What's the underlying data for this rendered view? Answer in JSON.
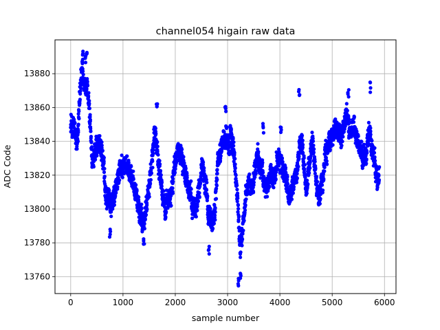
{
  "chart_data": {
    "type": "scatter",
    "title": "channel054 higain raw data",
    "xlabel": "sample number",
    "ylabel": "ADC Code",
    "xlim": [
      -300,
      6220
    ],
    "ylim": [
      13750,
      13900
    ],
    "xticks": [
      0,
      1000,
      2000,
      3000,
      4000,
      5000,
      6000
    ],
    "yticks": [
      13760,
      13780,
      13800,
      13820,
      13840,
      13860,
      13880
    ],
    "grid": true,
    "marker_color": "#0000ff",
    "trend": [
      [
        0,
        13850
      ],
      [
        60,
        13848
      ],
      [
        120,
        13842
      ],
      [
        180,
        13868
      ],
      [
        220,
        13880
      ],
      [
        260,
        13876
      ],
      [
        320,
        13874
      ],
      [
        360,
        13858
      ],
      [
        420,
        13830
      ],
      [
        480,
        13840
      ],
      [
        540,
        13838
      ],
      [
        600,
        13832
      ],
      [
        660,
        13815
      ],
      [
        720,
        13808
      ],
      [
        780,
        13800
      ],
      [
        840,
        13810
      ],
      [
        900,
        13820
      ],
      [
        960,
        13824
      ],
      [
        1020,
        13828
      ],
      [
        1080,
        13826
      ],
      [
        1140,
        13820
      ],
      [
        1200,
        13816
      ],
      [
        1260,
        13810
      ],
      [
        1320,
        13798
      ],
      [
        1380,
        13792
      ],
      [
        1440,
        13800
      ],
      [
        1500,
        13812
      ],
      [
        1560,
        13830
      ],
      [
        1620,
        13848
      ],
      [
        1680,
        13830
      ],
      [
        1740,
        13812
      ],
      [
        1800,
        13800
      ],
      [
        1860,
        13802
      ],
      [
        1920,
        13806
      ],
      [
        1980,
        13822
      ],
      [
        2040,
        13834
      ],
      [
        2100,
        13830
      ],
      [
        2160,
        13826
      ],
      [
        2220,
        13818
      ],
      [
        2280,
        13808
      ],
      [
        2340,
        13803
      ],
      [
        2400,
        13800
      ],
      [
        2460,
        13812
      ],
      [
        2520,
        13825
      ],
      [
        2580,
        13814
      ],
      [
        2640,
        13792
      ],
      [
        2700,
        13790
      ],
      [
        2760,
        13800
      ],
      [
        2820,
        13828
      ],
      [
        2880,
        13838
      ],
      [
        2940,
        13842
      ],
      [
        3000,
        13840
      ],
      [
        3060,
        13843
      ],
      [
        3100,
        13840
      ],
      [
        3160,
        13820
      ],
      [
        3200,
        13800
      ],
      [
        3240,
        13776
      ],
      [
        3300,
        13790
      ],
      [
        3360,
        13810
      ],
      [
        3420,
        13815
      ],
      [
        3480,
        13818
      ],
      [
        3540,
        13826
      ],
      [
        3600,
        13830
      ],
      [
        3660,
        13822
      ],
      [
        3720,
        13810
      ],
      [
        3780,
        13812
      ],
      [
        3840,
        13820
      ],
      [
        3900,
        13822
      ],
      [
        3960,
        13826
      ],
      [
        4020,
        13825
      ],
      [
        4080,
        13820
      ],
      [
        4140,
        13812
      ],
      [
        4200,
        13808
      ],
      [
        4260,
        13815
      ],
      [
        4320,
        13822
      ],
      [
        4380,
        13838
      ],
      [
        4440,
        13832
      ],
      [
        4500,
        13812
      ],
      [
        4560,
        13828
      ],
      [
        4620,
        13842
      ],
      [
        4680,
        13820
      ],
      [
        4740,
        13804
      ],
      [
        4800,
        13814
      ],
      [
        4860,
        13830
      ],
      [
        4920,
        13836
      ],
      [
        4980,
        13844
      ],
      [
        5040,
        13848
      ],
      [
        5100,
        13846
      ],
      [
        5160,
        13842
      ],
      [
        5220,
        13848
      ],
      [
        5280,
        13852
      ],
      [
        5340,
        13848
      ],
      [
        5400,
        13846
      ],
      [
        5460,
        13842
      ],
      [
        5520,
        13838
      ],
      [
        5580,
        13834
      ],
      [
        5640,
        13832
      ],
      [
        5700,
        13848
      ],
      [
        5760,
        13838
      ],
      [
        5820,
        13826
      ],
      [
        5880,
        13820
      ]
    ],
    "bursts": [
      [
        230,
        13891
      ],
      [
        280,
        13888
      ],
      [
        300,
        13893
      ],
      [
        5730,
        13872
      ],
      [
        4370,
        13868
      ],
      [
        5310,
        13868
      ],
      [
        1650,
        13862
      ],
      [
        2960,
        13860
      ],
      [
        3210,
        13757
      ],
      [
        3250,
        13762
      ],
      [
        2640,
        13776
      ],
      [
        1400,
        13782
      ],
      [
        750,
        13786
      ],
      [
        3680,
        13848
      ],
      [
        4020,
        13847
      ]
    ]
  }
}
